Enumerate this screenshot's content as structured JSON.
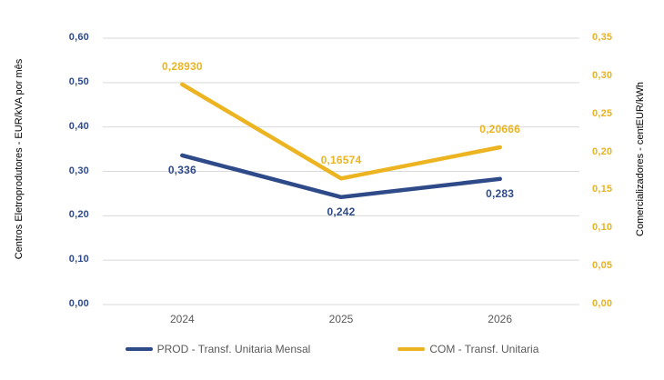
{
  "chart_data": {
    "type": "line",
    "categories": [
      "2024",
      "2025",
      "2026"
    ],
    "series": [
      {
        "name": "PROD - Transf. Unitaria Mensal",
        "axis": "left",
        "color": "#2E4A88",
        "values": [
          0.336,
          0.242,
          0.283
        ],
        "labels": [
          "0,336",
          "0,242",
          "0,283"
        ],
        "label_side": "below"
      },
      {
        "name": "COM - Transf. Unitaria",
        "axis": "right",
        "color": "#EDB422",
        "values": [
          0.2893,
          0.16574,
          0.20666
        ],
        "labels": [
          "0,28930",
          "0,16574",
          "0,20666"
        ],
        "label_side": "above"
      }
    ],
    "left_axis": {
      "label": "Centros Eletroprodutores - EUR/kVA por mês",
      "min": 0,
      "max": 0.6,
      "step": 0.1,
      "ticks": [
        "0,00",
        "0,10",
        "0,20",
        "0,30",
        "0,40",
        "0,50",
        "0,60"
      ],
      "color": "#2E4A88"
    },
    "right_axis": {
      "label": "Comercializadores - centEUR/kWh",
      "min": 0,
      "max": 0.35,
      "step": 0.05,
      "ticks": [
        "0,00",
        "0,05",
        "0,10",
        "0,15",
        "0,20",
        "0,25",
        "0,30",
        "0,35"
      ],
      "color": "#E9B220"
    },
    "grid": "horizontal",
    "grid_color": "#D9D9D9",
    "x_label_color": "#595959",
    "legend_position": "bottom",
    "legend": [
      "PROD - Transf. Unitaria Mensal",
      "COM - Transf. Unitaria"
    ]
  }
}
